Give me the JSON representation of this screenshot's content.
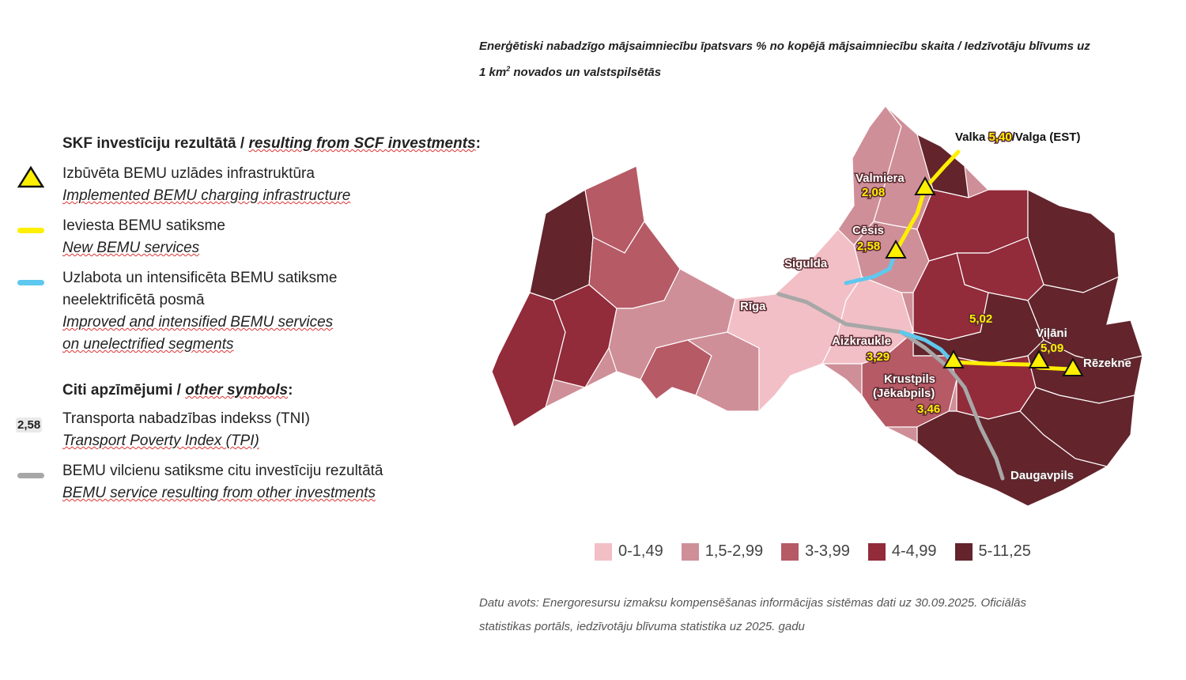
{
  "title": {
    "line1": "Enerģētiski nabadzīgo mājsaimniecību īpatsvars % no kopējā mājsaimniecību skaita / Iedzīvotāju blīvums uz",
    "line2_prefix": "1 km",
    "line2_sup": "2",
    "line2_suffix": " novados un valstspilsētās"
  },
  "legend": {
    "section1_title_lv": "SKF investīciju rezultātā / ",
    "section1_title_en": "resulting from SCF investments",
    "section1_title_colon": ":",
    "items1": [
      {
        "symbol": "triangle-icon",
        "lv": "Izbūvēta BEMU uzlādes infrastruktūra",
        "en": "Implemented BEMU charging infrastructure"
      },
      {
        "symbol": "yellow-line",
        "lv": "Ieviesta BEMU satiksme",
        "en": "New BEMU services"
      },
      {
        "symbol": "blue-line",
        "lv1": "Uzlabota un intensificēta BEMU satiksme",
        "lv2": "neelektrificētā posmā",
        "en1": "Improved and intensified BEMU services",
        "en2": "on unelectrified segments"
      }
    ],
    "section2_title_lv": "Citi apzīmējumi / ",
    "section2_title_en": "other symbols",
    "section2_title_colon": ":",
    "items2": [
      {
        "symbol": "tpi-badge",
        "badge": "2,58",
        "lv": "Transporta nabadzības indekss (TNI)",
        "en": "Transport Poverty Index (TPI)"
      },
      {
        "symbol": "grey-line",
        "lv": "BEMU vilcienu satiksme citu investīciju rezultātā",
        "en": "BEMU service resulting from other investments"
      }
    ]
  },
  "colors": {
    "c0": "#f2bfc6",
    "c1": "#cf8f98",
    "c2": "#b65a66",
    "c3": "#922b3a",
    "c4": "#63242c",
    "yellow": "#ffef00",
    "blue": "#5ec8ee",
    "grey": "#a7a7a7"
  },
  "scale": [
    {
      "label": "0-1,49",
      "color": "#f2bfc6"
    },
    {
      "label": "1,5-2,99",
      "color": "#cf8f98"
    },
    {
      "label": "3-3,99",
      "color": "#b65a66"
    },
    {
      "label": "4-4,99",
      "color": "#922b3a"
    },
    {
      "label": "5-11,25",
      "color": "#63242c"
    }
  ],
  "map": {
    "valka_prefix": "Valka ",
    "valka_value": "5,40",
    "valka_suffix": "/Valga (EST)",
    "valmiera": "Valmiera",
    "valmiera_tpi": "2,08",
    "cesis": "Cēsis",
    "cesis_tpi": "2,58",
    "sigulda": "Sigulda",
    "riga": "Rīga",
    "aizkraukle": "Aizkraukle",
    "aizkraukle_tpi": "3,29",
    "krustpils1": "Krustpils",
    "krustpils2": "(Jēkabpils)",
    "krustpils_tpi": "3,46",
    "region_tpi": "5,02",
    "vilani": "Viļāni",
    "vilani_tpi": "5,09",
    "rezekne": "Rēzekne",
    "daugavpils": "Daugavpils"
  },
  "source": {
    "line1": "Datu avots: Energoresursu izmaksu kompensēšanas informācijas sistēmas dati uz 30.09.2025. Oficiālās",
    "line2": "statistikas portāls, iedzīvotāju blīvuma statistika uz 2025. gadu"
  }
}
